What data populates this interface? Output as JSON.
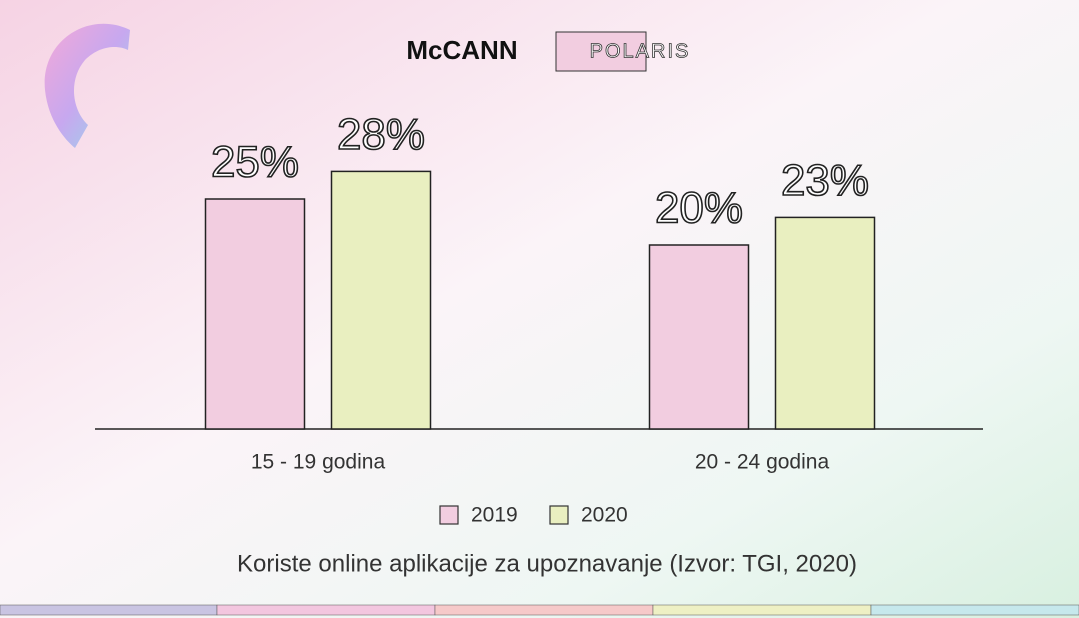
{
  "chart_data": {
    "type": "bar",
    "brand": "McCANN",
    "brand_partner": "POLARIS",
    "title": "Koriste online aplikacije za upoznavanje (Izvor: TGI, 2020)",
    "categories": [
      "15 - 19 godina",
      "20 - 24 godina"
    ],
    "series": [
      {
        "name": "2019",
        "color": "#f2cde0",
        "values": [
          25,
          20
        ],
        "value_labels": [
          "25%",
          "20%"
        ]
      },
      {
        "name": "2020",
        "color": "#e9efc0",
        "values": [
          28,
          23
        ],
        "value_labels": [
          "28%",
          "23%"
        ]
      }
    ]
  }
}
